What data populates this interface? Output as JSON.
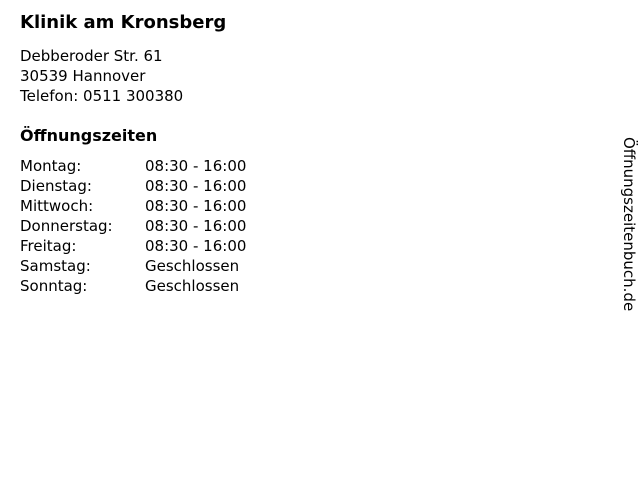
{
  "page": {
    "background_color": "#ffffff",
    "text_color": "#000000"
  },
  "business": {
    "name": "Klinik am Kronsberg",
    "street": "Debberoder Str. 61",
    "city": "30539 Hannover",
    "phone": "Telefon: 0511 300380"
  },
  "hours": {
    "heading": "Öffnungszeiten",
    "rows": [
      {
        "day": "Montag:",
        "time": "08:30 - 16:00"
      },
      {
        "day": "Dienstag:",
        "time": "08:30 - 16:00"
      },
      {
        "day": "Mittwoch:",
        "time": "08:30 - 16:00"
      },
      {
        "day": "Donnerstag:",
        "time": "08:30 - 16:00"
      },
      {
        "day": "Freitag:",
        "time": "08:30 - 16:00"
      },
      {
        "day": "Samstag:",
        "time": "Geschlossen"
      },
      {
        "day": "Sonntag:",
        "time": "Geschlossen"
      }
    ]
  },
  "watermark": {
    "label": "Öffnungszeitenbuch.de"
  }
}
